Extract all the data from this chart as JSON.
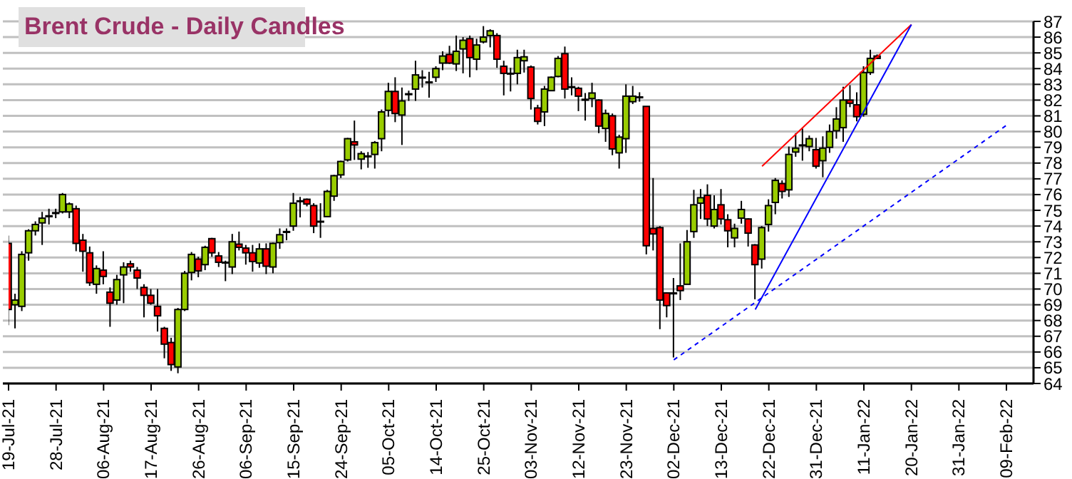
{
  "chart_data": {
    "type": "candlestick",
    "title": "Brent Crude - Daily Candles",
    "categories": [
      "19-Jul-21",
      null,
      null,
      null,
      null,
      null,
      null,
      "28-Jul-21",
      null,
      null,
      null,
      null,
      null,
      null,
      "06-Aug-21",
      null,
      null,
      null,
      null,
      null,
      null,
      "17-Aug-21",
      null,
      null,
      null,
      null,
      null,
      null,
      "26-Aug-21",
      null,
      null,
      null,
      null,
      null,
      null,
      "06-Sep-21",
      null,
      null,
      null,
      null,
      null,
      null,
      "15-Sep-21",
      null,
      null,
      null,
      null,
      null,
      null,
      "24-Sep-21",
      null,
      null,
      null,
      null,
      null,
      null,
      "05-Oct-21",
      null,
      null,
      null,
      null,
      null,
      null,
      "14-Oct-21",
      null,
      null,
      null,
      null,
      null,
      null,
      "25-Oct-21",
      null,
      null,
      null,
      null,
      null,
      null,
      "03-Nov-21",
      null,
      null,
      null,
      null,
      null,
      null,
      "12-Nov-21",
      null,
      null,
      null,
      null,
      null,
      null,
      "23-Nov-21",
      null,
      null,
      null,
      null,
      null,
      null,
      "02-Dec-21",
      null,
      null,
      null,
      null,
      null,
      null,
      "13-Dec-21",
      null,
      null,
      null,
      null,
      null,
      null,
      "22-Dec-21",
      null,
      null,
      null,
      null,
      null,
      null,
      "31-Dec-21",
      null,
      null,
      null,
      null,
      null,
      null,
      "11-Jan-22",
      null,
      null,
      null,
      null,
      null,
      null,
      "20-Jan-22",
      null,
      null,
      null,
      null,
      null,
      null,
      "31-Jan-22",
      null,
      null,
      null,
      null,
      null,
      null,
      "09-Feb-22"
    ],
    "ohlc": [
      [
        72.9,
        73.4,
        67.7,
        68.7
      ],
      [
        69.0,
        69.7,
        67.5,
        69.3
      ],
      [
        68.9,
        72.4,
        68.6,
        72.2
      ],
      [
        72.3,
        73.8,
        71.8,
        73.7
      ],
      [
        73.7,
        74.3,
        73.4,
        74.1
      ],
      [
        74.2,
        74.9,
        72.8,
        74.5
      ],
      [
        74.6,
        75.1,
        74.1,
        74.65
      ],
      [
        74.8,
        75.1,
        74.5,
        74.85
      ],
      [
        74.9,
        76.1,
        74.8,
        76.0
      ],
      [
        74.9,
        75.5,
        74.5,
        75.4
      ],
      [
        75.1,
        75.3,
        72.4,
        72.9
      ],
      [
        73.1,
        73.5,
        71.1,
        72.4
      ],
      [
        72.3,
        72.7,
        70.2,
        70.4
      ],
      [
        70.3,
        71.5,
        69.7,
        71.3
      ],
      [
        71.2,
        72.4,
        70.3,
        70.8
      ],
      [
        69.8,
        70.1,
        67.6,
        69.1
      ],
      [
        69.3,
        70.9,
        69.0,
        70.6
      ],
      [
        70.9,
        71.7,
        69.1,
        71.4
      ],
      [
        71.6,
        71.8,
        71.1,
        71.4
      ],
      [
        71.2,
        71.4,
        70.0,
        70.7
      ],
      [
        70.1,
        70.3,
        68.2,
        69.6
      ],
      [
        69.6,
        70.0,
        69.0,
        69.1
      ],
      [
        68.9,
        70.0,
        67.3,
        68.3
      ],
      [
        67.5,
        67.6,
        65.6,
        66.5
      ],
      [
        66.6,
        66.9,
        64.8,
        65.2
      ],
      [
        65.05,
        68.8,
        64.65,
        68.7
      ],
      [
        68.7,
        71.15,
        68.6,
        71.0
      ],
      [
        71.05,
        72.35,
        70.55,
        72.2
      ],
      [
        71.9,
        72.05,
        70.75,
        71.15
      ],
      [
        71.55,
        72.75,
        71.2,
        72.65
      ],
      [
        73.2,
        73.25,
        72.05,
        72.3
      ],
      [
        72.1,
        72.35,
        71.4,
        71.7
      ],
      [
        71.7,
        71.8,
        70.5,
        71.7
      ],
      [
        71.4,
        73.5,
        70.95,
        73.0
      ],
      [
        72.85,
        73.65,
        72.45,
        72.65
      ],
      [
        72.6,
        72.8,
        71.55,
        72.3
      ],
      [
        72.3,
        72.8,
        71.1,
        71.75
      ],
      [
        71.65,
        72.9,
        71.35,
        72.55
      ],
      [
        72.55,
        72.9,
        70.95,
        71.45
      ],
      [
        71.4,
        72.95,
        71.0,
        72.9
      ],
      [
        72.95,
        73.85,
        72.55,
        73.45
      ],
      [
        73.6,
        73.85,
        73.1,
        73.65
      ],
      [
        74.0,
        76.1,
        73.7,
        75.45
      ],
      [
        75.6,
        75.85,
        74.55,
        75.6
      ],
      [
        75.7,
        75.75,
        75.25,
        75.4
      ],
      [
        75.3,
        75.45,
        73.55,
        74.0
      ],
      [
        74.3,
        75.45,
        73.25,
        74.3
      ],
      [
        74.6,
        76.3,
        74.6,
        76.2
      ],
      [
        75.9,
        77.25,
        75.6,
        77.2
      ],
      [
        77.25,
        78.15,
        77.05,
        78.1
      ],
      [
        78.2,
        79.6,
        78.1,
        79.55
      ],
      [
        79.35,
        80.7,
        78.2,
        79.15
      ],
      [
        78.25,
        78.75,
        77.6,
        78.6
      ],
      [
        78.4,
        78.7,
        77.7,
        78.45
      ],
      [
        78.55,
        79.4,
        77.65,
        79.3
      ],
      [
        79.55,
        81.4,
        78.75,
        81.25
      ],
      [
        81.35,
        83.1,
        80.95,
        82.55
      ],
      [
        82.55,
        83.45,
        80.6,
        81.15
      ],
      [
        81.05,
        82.8,
        79.15,
        81.95
      ],
      [
        82.35,
        82.6,
        81.95,
        82.4
      ],
      [
        82.7,
        84.5,
        81.95,
        83.6
      ],
      [
        83.45,
        83.9,
        82.8,
        83.45
      ],
      [
        83.15,
        83.8,
        82.15,
        83.15
      ],
      [
        83.45,
        84.15,
        83.15,
        84.0
      ],
      [
        84.35,
        85.1,
        83.9,
        84.8
      ],
      [
        84.9,
        85.45,
        84.3,
        84.35
      ],
      [
        84.3,
        86.1,
        83.85,
        85.1
      ],
      [
        85.25,
        86.0,
        83.7,
        85.8
      ],
      [
        85.9,
        86.1,
        83.45,
        84.7
      ],
      [
        84.6,
        85.9,
        83.9,
        85.5
      ],
      [
        85.7,
        86.7,
        85.6,
        86.0
      ],
      [
        86.1,
        86.5,
        85.35,
        86.4
      ],
      [
        86.1,
        86.25,
        84.05,
        84.6
      ],
      [
        84.15,
        84.5,
        82.3,
        83.7
      ],
      [
        83.7,
        84.05,
        82.55,
        83.7
      ],
      [
        83.7,
        85.2,
        83.0,
        84.7
      ],
      [
        84.5,
        85.2,
        83.75,
        84.75
      ],
      [
        84.1,
        84.2,
        81.4,
        82.1
      ],
      [
        81.5,
        81.7,
        80.45,
        80.65
      ],
      [
        81.25,
        82.9,
        80.35,
        82.7
      ],
      [
        82.6,
        83.5,
        82.6,
        83.45
      ],
      [
        83.5,
        84.8,
        83.45,
        84.65
      ],
      [
        84.95,
        85.4,
        82.1,
        82.7
      ],
      [
        82.8,
        83.45,
        82.3,
        82.85
      ],
      [
        82.75,
        82.85,
        81.3,
        82.25
      ],
      [
        82.0,
        82.45,
        80.7,
        82.05
      ],
      [
        82.1,
        83.1,
        81.55,
        82.45
      ],
      [
        82.0,
        82.05,
        79.9,
        80.35
      ],
      [
        80.2,
        81.4,
        79.35,
        81.15
      ],
      [
        81.0,
        81.15,
        78.5,
        78.9
      ],
      [
        78.65,
        79.8,
        77.65,
        79.65
      ],
      [
        79.55,
        83.0,
        78.65,
        82.25
      ],
      [
        81.9,
        82.9,
        81.75,
        82.25
      ],
      [
        82.2,
        82.5,
        81.9,
        82.2
      ],
      [
        81.6,
        81.6,
        72.2,
        72.75
      ],
      [
        73.85,
        77.05,
        72.45,
        73.5
      ],
      [
        73.9,
        74.0,
        67.45,
        69.3
      ],
      [
        69.75,
        69.8,
        68.2,
        68.95
      ],
      [
        69.7,
        70.7,
        65.65,
        69.75
      ],
      [
        70.2,
        72.9,
        69.3,
        69.9
      ],
      [
        70.3,
        73.75,
        70.3,
        73.0
      ],
      [
        73.65,
        76.3,
        73.25,
        75.35
      ],
      [
        75.45,
        76.35,
        74.45,
        75.8
      ],
      [
        75.95,
        76.65,
        74.0,
        74.45
      ],
      [
        74.0,
        75.95,
        73.85,
        75.05
      ],
      [
        75.35,
        76.35,
        74.1,
        74.45
      ],
      [
        74.4,
        74.75,
        72.65,
        73.7
      ],
      [
        73.25,
        74.15,
        72.65,
        73.85
      ],
      [
        74.5,
        75.6,
        74.15,
        75.05
      ],
      [
        74.45,
        74.5,
        72.7,
        73.55
      ],
      [
        72.8,
        72.85,
        69.35,
        71.55
      ],
      [
        71.9,
        74.0,
        71.3,
        73.9
      ],
      [
        74.1,
        75.7,
        73.65,
        75.3
      ],
      [
        75.5,
        77.05,
        74.75,
        76.9
      ],
      [
        76.7,
        76.9,
        75.75,
        76.2
      ],
      [
        76.3,
        79.05,
        75.85,
        78.55
      ],
      [
        78.7,
        79.9,
        78.4,
        78.95
      ],
      [
        79.1,
        80.2,
        78.15,
        79.15
      ],
      [
        79.05,
        79.75,
        78.75,
        79.55
      ],
      [
        78.85,
        79.6,
        77.65,
        77.8
      ],
      [
        78.15,
        79.7,
        77.1,
        78.95
      ],
      [
        79.0,
        80.45,
        78.65,
        80.0
      ],
      [
        80.05,
        81.55,
        79.55,
        80.8
      ],
      [
        80.25,
        82.85,
        79.35,
        82.0
      ],
      [
        82.0,
        82.95,
        81.55,
        81.8
      ],
      [
        81.7,
        82.5,
        80.65,
        80.95
      ],
      [
        81.1,
        84.15,
        80.95,
        83.75
      ],
      [
        83.75,
        85.2,
        83.6,
        84.65
      ],
      [
        84.8,
        84.9,
        84.6,
        84.65
      ],
      null,
      null,
      null,
      null,
      null,
      null,
      null,
      null,
      null,
      null,
      null,
      null,
      null,
      null,
      null,
      null,
      null,
      null,
      null
    ],
    "colors": [
      "#ff0000",
      "#99cc00",
      "#99cc00",
      "#99cc00",
      "#99cc00",
      "#99cc00",
      "#99cc00",
      "#99cc00",
      "#99cc00",
      "#99cc00",
      "#ff0000",
      "#ff0000",
      "#ff0000",
      "#99cc00",
      "#ff0000",
      "#ff0000",
      "#99cc00",
      "#99cc00",
      "#ff0000",
      "#ff0000",
      "#ff0000",
      "#ff0000",
      "#ff0000",
      "#ff0000",
      "#ff0000",
      "#99cc00",
      "#99cc00",
      "#99cc00",
      "#ff0000",
      "#99cc00",
      "#ff0000",
      "#ff0000",
      "#99cc00",
      "#99cc00",
      "#ff0000",
      "#ff0000",
      "#ff0000",
      "#99cc00",
      "#ff0000",
      "#99cc00",
      "#99cc00",
      "#99cc00",
      "#99cc00",
      "#99cc00",
      "#ff0000",
      "#ff0000",
      "#99cc00",
      "#99cc00",
      "#99cc00",
      "#99cc00",
      "#99cc00",
      "#ff0000",
      "#99cc00",
      "#99cc00",
      "#99cc00",
      "#99cc00",
      "#99cc00",
      "#ff0000",
      "#99cc00",
      "#99cc00",
      "#99cc00",
      "#99cc00",
      "#99cc00",
      "#99cc00",
      "#99cc00",
      "#ff0000",
      "#99cc00",
      "#99cc00",
      "#ff0000",
      "#99cc00",
      "#99cc00",
      "#99cc00",
      "#ff0000",
      "#ff0000",
      "#99cc00",
      "#99cc00",
      "#99cc00",
      "#ff0000",
      "#ff0000",
      "#99cc00",
      "#99cc00",
      "#99cc00",
      "#ff0000",
      "#99cc00",
      "#ff0000",
      "#99cc00",
      "#99cc00",
      "#ff0000",
      "#99cc00",
      "#ff0000",
      "#99cc00",
      "#99cc00",
      "#99cc00",
      "#99cc00",
      "#ff0000",
      "#ff0000",
      "#ff0000",
      "#ff0000",
      "#99cc00",
      "#ff0000",
      "#99cc00",
      "#99cc00",
      "#99cc00",
      "#ff0000",
      "#99cc00",
      "#ff0000",
      "#ff0000",
      "#99cc00",
      "#99cc00",
      "#ff0000",
      "#ff0000",
      "#99cc00",
      "#99cc00",
      "#99cc00",
      "#ff0000",
      "#99cc00",
      "#99cc00",
      "#99cc00",
      "#99cc00",
      "#ff0000",
      "#99cc00",
      "#99cc00",
      "#99cc00",
      "#99cc00",
      "#ff0000",
      "#ff0000",
      "#99cc00",
      "#99cc00",
      "#ff0000",
      null,
      null,
      null,
      null,
      null,
      null,
      null,
      null,
      null,
      null,
      null,
      null,
      null,
      null,
      null,
      null,
      null,
      null,
      null
    ],
    "series": [
      {
        "type": "line",
        "color": "#ff0000",
        "line_style": "solid",
        "values": [
          null,
          null,
          null,
          null,
          null,
          null,
          null,
          null,
          null,
          null,
          null,
          null,
          null,
          null,
          null,
          null,
          null,
          null,
          null,
          null,
          null,
          null,
          null,
          null,
          null,
          null,
          null,
          null,
          null,
          null,
          null,
          null,
          null,
          null,
          null,
          null,
          null,
          null,
          null,
          null,
          null,
          null,
          null,
          null,
          null,
          null,
          null,
          null,
          null,
          null,
          null,
          null,
          null,
          null,
          null,
          null,
          null,
          null,
          null,
          null,
          null,
          null,
          null,
          null,
          null,
          null,
          null,
          null,
          null,
          null,
          null,
          null,
          null,
          null,
          null,
          null,
          null,
          null,
          null,
          null,
          null,
          null,
          null,
          null,
          null,
          null,
          null,
          null,
          null,
          null,
          null,
          null,
          null,
          null,
          null,
          null,
          null,
          null,
          null,
          null,
          null,
          null,
          null,
          null,
          null,
          null,
          null,
          null,
          null,
          null,
          null,
          77.8,
          null,
          null,
          null,
          null,
          null,
          null,
          null,
          null,
          null,
          null,
          null,
          null,
          null,
          null,
          null,
          null,
          null,
          null,
          null,
          null,
          null,
          86.8,
          null,
          null,
          null,
          null,
          null,
          null,
          null,
          null,
          null,
          null,
          null,
          null,
          null,
          null
        ]
      },
      {
        "type": "line",
        "color": "#0000ff",
        "line_style": "solid",
        "values": [
          null,
          null,
          null,
          null,
          null,
          null,
          null,
          null,
          null,
          null,
          null,
          null,
          null,
          null,
          null,
          null,
          null,
          null,
          null,
          null,
          null,
          null,
          null,
          null,
          null,
          null,
          null,
          null,
          null,
          null,
          null,
          null,
          null,
          null,
          null,
          null,
          null,
          null,
          null,
          null,
          null,
          null,
          null,
          null,
          null,
          null,
          null,
          null,
          null,
          null,
          null,
          null,
          null,
          null,
          null,
          null,
          null,
          null,
          null,
          null,
          null,
          null,
          null,
          null,
          null,
          null,
          null,
          null,
          null,
          null,
          null,
          null,
          null,
          null,
          null,
          null,
          null,
          null,
          null,
          null,
          null,
          null,
          null,
          null,
          null,
          null,
          null,
          null,
          null,
          null,
          null,
          null,
          null,
          null,
          null,
          null,
          null,
          null,
          null,
          null,
          null,
          null,
          null,
          null,
          null,
          null,
          null,
          null,
          null,
          null,
          68.7,
          null,
          null,
          null,
          null,
          null,
          null,
          null,
          null,
          null,
          null,
          null,
          null,
          null,
          null,
          null,
          null,
          null,
          null,
          null,
          null,
          null,
          null,
          86.8,
          null,
          null,
          null,
          null,
          null,
          null,
          null,
          null,
          null,
          null,
          null,
          null,
          null,
          null
        ]
      },
      {
        "type": "line",
        "color": "#0000ff",
        "line_style": "dashed",
        "values": [
          null,
          null,
          null,
          null,
          null,
          null,
          null,
          null,
          null,
          null,
          null,
          null,
          null,
          null,
          null,
          null,
          null,
          null,
          null,
          null,
          null,
          null,
          null,
          null,
          null,
          null,
          null,
          null,
          null,
          null,
          null,
          null,
          null,
          null,
          null,
          null,
          null,
          null,
          null,
          null,
          null,
          null,
          null,
          null,
          null,
          null,
          null,
          null,
          null,
          null,
          null,
          null,
          null,
          null,
          null,
          null,
          null,
          null,
          null,
          null,
          null,
          null,
          null,
          null,
          null,
          null,
          null,
          null,
          null,
          null,
          null,
          null,
          null,
          null,
          null,
          null,
          null,
          null,
          null,
          null,
          null,
          null,
          null,
          null,
          null,
          null,
          null,
          null,
          null,
          null,
          null,
          null,
          null,
          null,
          null,
          null,
          null,
          null,
          65.5,
          null,
          null,
          null,
          null,
          null,
          null,
          null,
          null,
          null,
          null,
          null,
          null,
          null,
          null,
          null,
          null,
          null,
          null,
          null,
          null,
          null,
          null,
          null,
          null,
          null,
          null,
          null,
          null,
          null,
          null,
          null,
          null,
          null,
          null,
          null,
          null,
          null,
          null,
          null,
          null,
          null,
          null,
          null,
          null,
          null,
          null,
          null,
          null,
          80.4
        ]
      }
    ],
    "ylim": [
      64,
      87
    ],
    "yticks": [
      64,
      65,
      66,
      67,
      68,
      69,
      70,
      71,
      72,
      73,
      74,
      75,
      76,
      77,
      78,
      79,
      80,
      81,
      82,
      83,
      84,
      85,
      86,
      87
    ],
    "grid": "y"
  }
}
